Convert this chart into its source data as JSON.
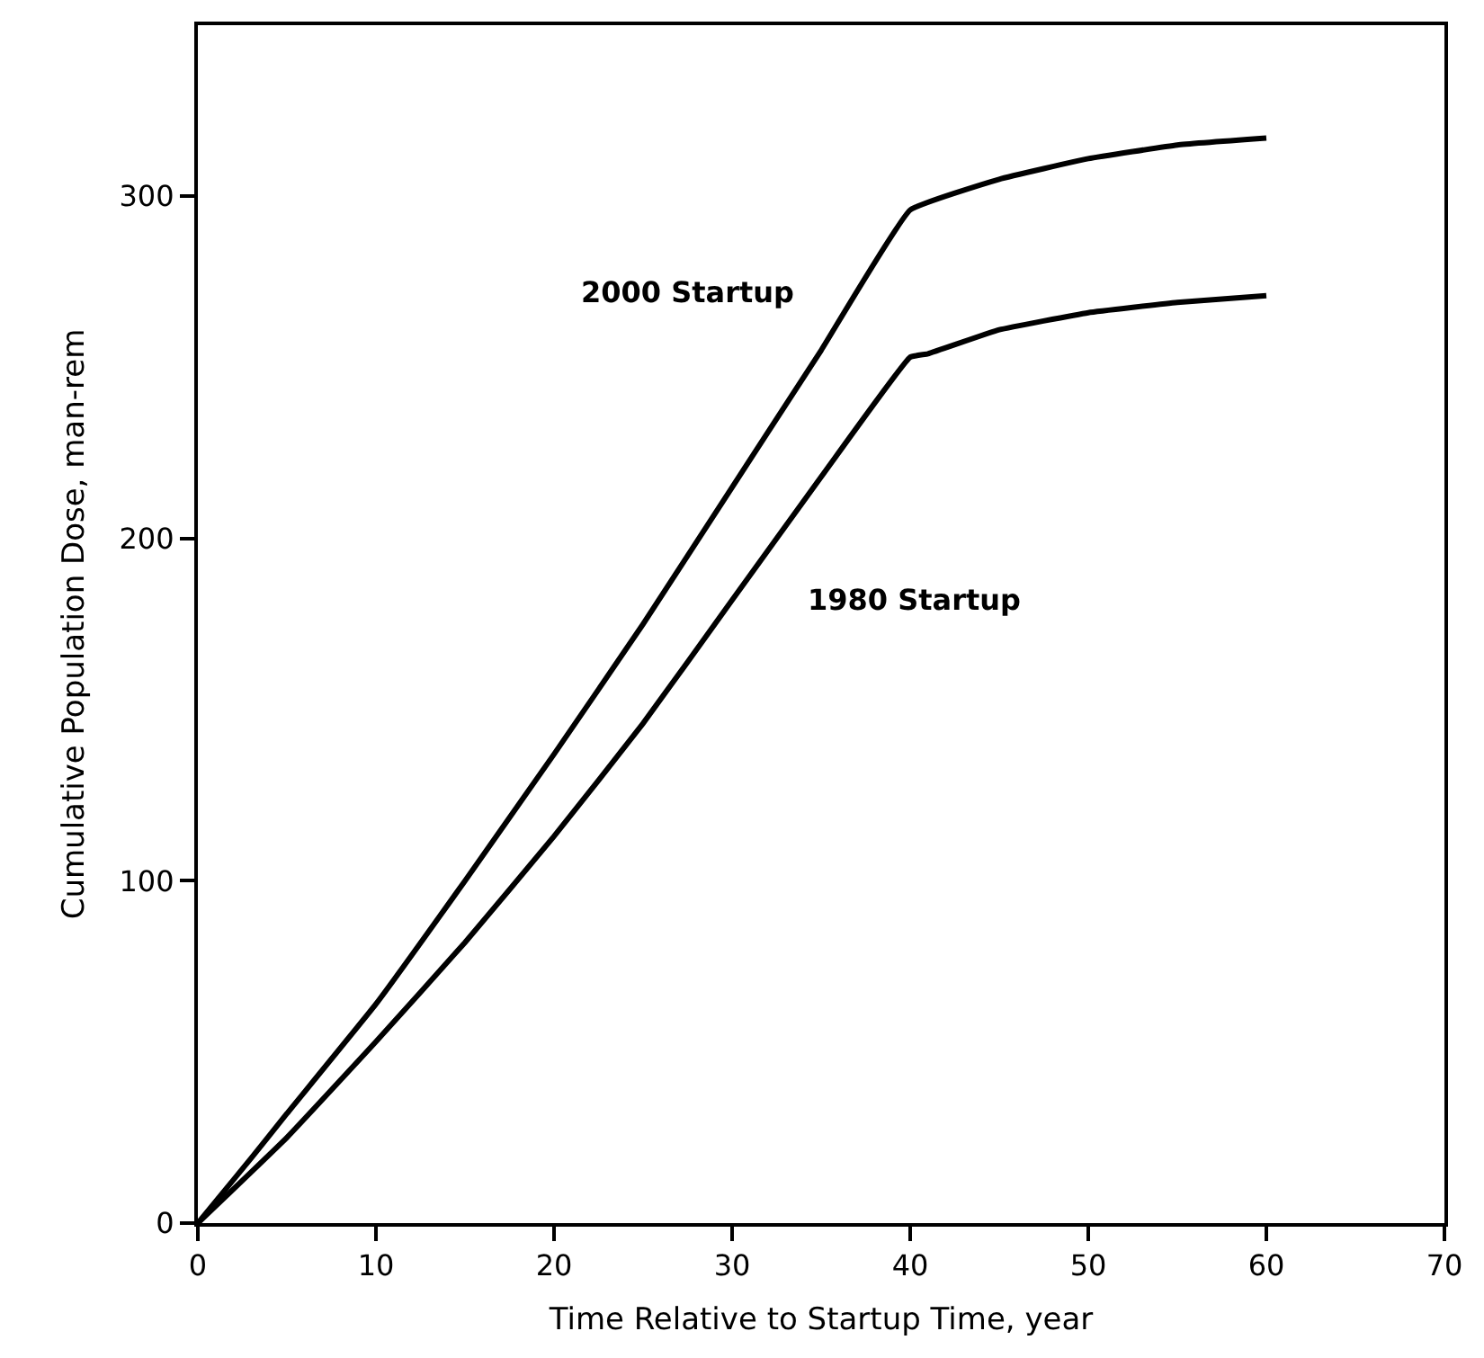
{
  "chart_data": {
    "type": "line",
    "xlabel": "Time Relative to Startup Time, year",
    "ylabel": "Cumulative Population Dose, man-rem",
    "xlim": [
      0,
      70
    ],
    "xticks": [
      0,
      10,
      20,
      30,
      40,
      50,
      60,
      70
    ],
    "ylim": [
      0,
      350
    ],
    "yticks": [
      0,
      100,
      200,
      300
    ],
    "legend": false,
    "marker": "none",
    "line_style": "solid",
    "series": [
      {
        "name": "2000 Startup",
        "color": "#000000",
        "x": [
          0,
          3,
          5,
          10,
          15,
          20,
          25,
          30,
          35,
          40,
          45,
          50,
          55,
          60
        ],
        "values": [
          0,
          19,
          32,
          64,
          100,
          137,
          175,
          215,
          255,
          296,
          305,
          311,
          315,
          317
        ]
      },
      {
        "name": "1980 Startup",
        "color": "#000000",
        "x": [
          0,
          5,
          10,
          15,
          20,
          25,
          30,
          35,
          40,
          41,
          45,
          50,
          55,
          60
        ],
        "values": [
          0,
          25,
          53,
          82,
          113,
          146,
          182,
          218,
          253,
          254,
          261,
          266,
          269,
          271
        ]
      }
    ]
  }
}
